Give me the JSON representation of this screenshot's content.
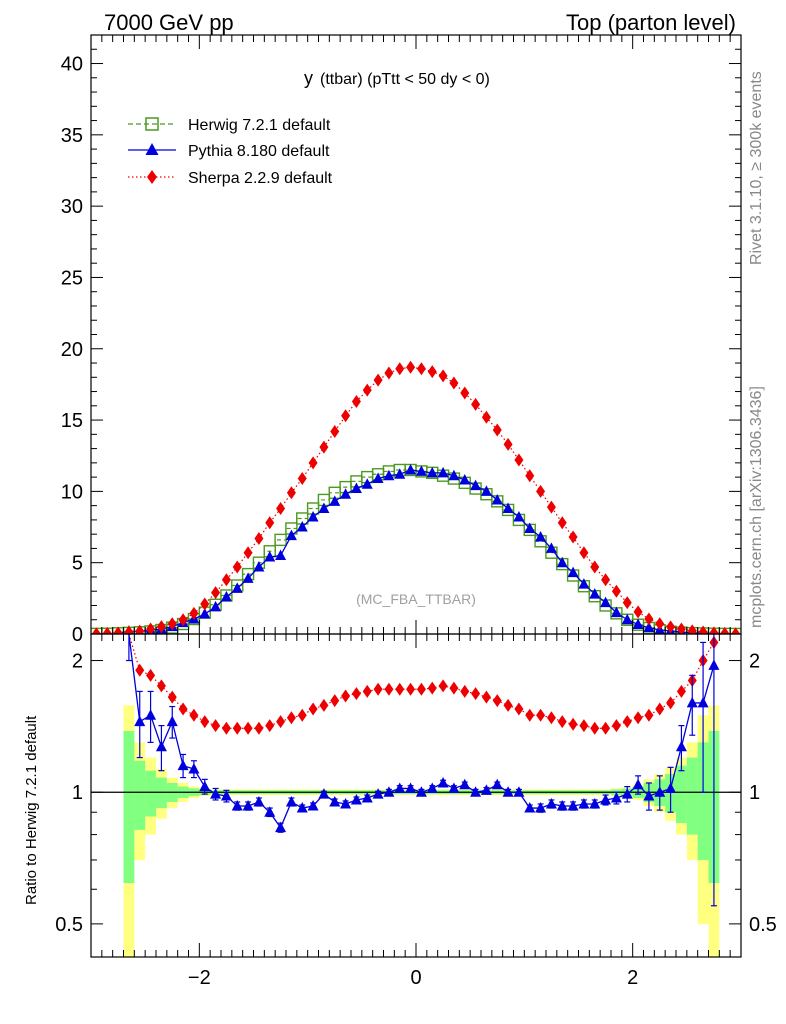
{
  "header": {
    "left": "7000 GeV pp",
    "right": "Top (parton level)"
  },
  "side_labels": {
    "rivet": "Rivet 3.1.10, ≥ 300k events",
    "mcplots": "mcplots.cern.ch [arXiv:1306.3436]"
  },
  "watermark": "(MC_FBA_TTBAR)",
  "colors": {
    "herwig": "#4a9a1e",
    "pythia": "#0000dd",
    "sherpa": "#ee0000",
    "band_inner": "#80ff80",
    "band_outer": "#ffff80"
  },
  "chart_data": [
    {
      "type": "line",
      "title_main": "y",
      "title_rest": "(ttbar) (pTtt < 50 dy < 0)",
      "xlabel": "",
      "ylabel": "",
      "xlim": [
        -3,
        3
      ],
      "ylim": [
        0,
        42
      ],
      "yticks": [
        0,
        5,
        10,
        15,
        20,
        25,
        30,
        35,
        40
      ],
      "xticks": [
        -2,
        0,
        2
      ],
      "legend": [
        {
          "name": "Herwig 7.2.1 default",
          "style": "dashed-open-square"
        },
        {
          "name": "Pythia 8.180 default",
          "style": "solid-triangle"
        },
        {
          "name": "Sherpa 2.2.9 default",
          "style": "dotted-diamond"
        }
      ],
      "legend_position": "top-left",
      "bin_width": 0.1,
      "x": [
        -2.95,
        -2.85,
        -2.75,
        -2.65,
        -2.55,
        -2.45,
        -2.35,
        -2.25,
        -2.15,
        -2.05,
        -1.95,
        -1.85,
        -1.75,
        -1.65,
        -1.55,
        -1.45,
        -1.35,
        -1.25,
        -1.15,
        -1.05,
        -0.95,
        -0.85,
        -0.75,
        -0.65,
        -0.55,
        -0.45,
        -0.35,
        -0.25,
        -0.15,
        -0.05,
        0.05,
        0.15,
        0.25,
        0.35,
        0.45,
        0.55,
        0.65,
        0.75,
        0.85,
        0.95,
        1.05,
        1.15,
        1.25,
        1.35,
        1.45,
        1.55,
        1.65,
        1.75,
        1.85,
        1.95,
        2.05,
        2.15,
        2.25,
        2.35,
        2.45,
        2.55,
        2.65,
        2.75,
        2.85,
        2.95
      ],
      "series": [
        {
          "name": "Herwig 7.2.1 default",
          "values": [
            0.01,
            0.02,
            0.05,
            0.08,
            0.12,
            0.18,
            0.28,
            0.45,
            0.7,
            1.05,
            1.5,
            2.05,
            2.7,
            3.4,
            4.2,
            5.0,
            5.8,
            6.6,
            7.4,
            8.1,
            8.8,
            9.4,
            9.9,
            10.3,
            10.7,
            11.0,
            11.2,
            11.4,
            11.5,
            11.5,
            11.4,
            11.3,
            11.1,
            10.9,
            10.6,
            10.2,
            9.8,
            9.3,
            8.7,
            8.0,
            7.3,
            6.5,
            5.7,
            4.9,
            4.1,
            3.35,
            2.65,
            2.0,
            1.45,
            1.0,
            0.65,
            0.42,
            0.26,
            0.16,
            0.1,
            0.06,
            0.04,
            0.02,
            0.01,
            0.005
          ]
        },
        {
          "name": "Pythia 8.180 default",
          "values": [
            0.0,
            0.01,
            0.06,
            0.2,
            0.17,
            0.26,
            0.35,
            0.52,
            0.8,
            1.05,
            1.4,
            1.9,
            2.6,
            3.2,
            3.9,
            4.7,
            5.4,
            5.5,
            6.9,
            7.5,
            8.2,
            8.8,
            9.3,
            9.8,
            10.2,
            10.5,
            10.9,
            11.1,
            11.2,
            11.5,
            11.4,
            11.3,
            11.3,
            11.1,
            10.8,
            10.4,
            10.0,
            9.4,
            8.8,
            8.2,
            7.4,
            6.8,
            6.0,
            5.0,
            4.3,
            3.5,
            2.8,
            2.2,
            1.5,
            1.0,
            0.67,
            0.44,
            0.28,
            0.23,
            0.14,
            0.09,
            0.05,
            0.04,
            0.01,
            0.0
          ]
        },
        {
          "name": "Sherpa 2.2.9 default",
          "values": [
            0.02,
            0.04,
            0.08,
            0.14,
            0.2,
            0.35,
            0.52,
            0.72,
            1.0,
            1.45,
            2.1,
            2.9,
            3.8,
            4.7,
            5.7,
            6.7,
            7.8,
            8.8,
            9.9,
            10.9,
            12.0,
            13.1,
            14.2,
            15.3,
            16.3,
            17.1,
            17.8,
            18.3,
            18.6,
            18.7,
            18.6,
            18.4,
            18.1,
            17.6,
            16.9,
            16.1,
            15.2,
            14.3,
            13.3,
            12.2,
            11.1,
            10.0,
            8.9,
            7.8,
            6.8,
            5.7,
            4.7,
            3.8,
            3.0,
            2.2,
            1.55,
            1.05,
            0.72,
            0.5,
            0.35,
            0.22,
            0.14,
            0.08,
            0.04,
            0.02
          ]
        }
      ]
    },
    {
      "type": "line",
      "title": "",
      "xlabel": "",
      "ylabel": "Ratio to Herwig 7.2.1 default",
      "xlim": [
        -3,
        3
      ],
      "ylim": [
        0.42,
        2.3
      ],
      "yscale": "log",
      "yticks": [
        0.5,
        1,
        2
      ],
      "ytick_labels": [
        "0.5",
        "1",
        "2"
      ],
      "xticks": [
        -2,
        0,
        2
      ],
      "xtick_labels": [
        "−2",
        "0",
        "2"
      ],
      "x": [
        -2.65,
        -2.55,
        -2.45,
        -2.35,
        -2.25,
        -2.15,
        -2.05,
        -1.95,
        -1.85,
        -1.75,
        -1.65,
        -1.55,
        -1.45,
        -1.35,
        -1.25,
        -1.15,
        -1.05,
        -0.95,
        -0.85,
        -0.75,
        -0.65,
        -0.55,
        -0.45,
        -0.35,
        -0.25,
        -0.15,
        -0.05,
        0.05,
        0.15,
        0.25,
        0.35,
        0.45,
        0.55,
        0.65,
        0.75,
        0.85,
        0.95,
        1.05,
        1.15,
        1.25,
        1.35,
        1.45,
        1.55,
        1.65,
        1.75,
        1.85,
        1.95,
        2.05,
        2.15,
        2.25,
        2.35,
        2.45,
        2.55,
        2.65,
        2.75
      ],
      "series": [
        {
          "name": "Pythia 8.180 default",
          "values": [
            2.4,
            1.45,
            1.5,
            1.27,
            1.45,
            1.15,
            1.13,
            1.03,
            0.99,
            0.98,
            0.93,
            0.93,
            0.95,
            0.9,
            0.83,
            0.95,
            0.92,
            0.93,
            0.99,
            0.95,
            0.94,
            0.96,
            0.97,
            0.99,
            1.0,
            1.02,
            1.02,
            1.0,
            1.02,
            1.05,
            1.02,
            1.04,
            1.0,
            1.01,
            1.04,
            1.0,
            1.0,
            0.92,
            0.92,
            0.94,
            0.93,
            0.93,
            0.94,
            0.94,
            0.96,
            0.97,
            0.99,
            1.04,
            0.98,
            1.0,
            1.02,
            1.27,
            1.6,
            1.6,
            1.95
          ],
          "errors": [
            0.4,
            0.25,
            0.2,
            0.15,
            0.12,
            0.07,
            0.05,
            0.04,
            0.03,
            0.03,
            0.02,
            0.02,
            0.02,
            0.02,
            0.02,
            0.02,
            0.015,
            0.015,
            0.015,
            0.015,
            0.015,
            0.015,
            0.015,
            0.015,
            0.015,
            0.015,
            0.015,
            0.015,
            0.015,
            0.015,
            0.015,
            0.015,
            0.015,
            0.015,
            0.015,
            0.015,
            0.015,
            0.015,
            0.02,
            0.02,
            0.02,
            0.02,
            0.02,
            0.02,
            0.025,
            0.03,
            0.04,
            0.05,
            0.07,
            0.09,
            0.12,
            0.15,
            0.25,
            0.6,
            1.4
          ]
        },
        {
          "name": "Sherpa 2.2.9 default",
          "values": [
            2.5,
            1.9,
            1.85,
            1.75,
            1.65,
            1.55,
            1.5,
            1.45,
            1.42,
            1.4,
            1.4,
            1.4,
            1.4,
            1.42,
            1.45,
            1.48,
            1.5,
            1.55,
            1.58,
            1.62,
            1.66,
            1.68,
            1.7,
            1.72,
            1.72,
            1.72,
            1.72,
            1.72,
            1.73,
            1.75,
            1.73,
            1.7,
            1.68,
            1.65,
            1.62,
            1.58,
            1.55,
            1.5,
            1.5,
            1.48,
            1.45,
            1.43,
            1.42,
            1.4,
            1.4,
            1.42,
            1.45,
            1.48,
            1.5,
            1.55,
            1.6,
            1.7,
            1.8,
            2.0,
            2.2
          ]
        }
      ],
      "band_inner": [
        0.62,
        0.82,
        0.88,
        0.92,
        0.95,
        0.97,
        0.98,
        0.985,
        0.99,
        0.99,
        0.99,
        0.99,
        0.99,
        0.99,
        0.99,
        0.99,
        0.99,
        0.99,
        0.99,
        0.99,
        0.99,
        0.99,
        0.99,
        0.99,
        0.99,
        0.99,
        0.99,
        0.99,
        0.99,
        0.99,
        0.99,
        0.99,
        0.99,
        0.99,
        0.99,
        0.99,
        0.99,
        0.99,
        0.99,
        0.99,
        0.99,
        0.99,
        0.99,
        0.99,
        0.99,
        0.985,
        0.98,
        0.97,
        0.95,
        0.93,
        0.9,
        0.85,
        0.8,
        0.7,
        0.62
      ],
      "band_outer": [
        0.42,
        0.7,
        0.8,
        0.87,
        0.92,
        0.95,
        0.97,
        0.98,
        0.985,
        0.985,
        0.985,
        0.985,
        0.985,
        0.985,
        0.985,
        0.985,
        0.985,
        0.985,
        0.985,
        0.985,
        0.985,
        0.985,
        0.985,
        0.985,
        0.985,
        0.985,
        0.985,
        0.985,
        0.985,
        0.985,
        0.985,
        0.985,
        0.985,
        0.985,
        0.985,
        0.985,
        0.985,
        0.985,
        0.985,
        0.985,
        0.985,
        0.985,
        0.985,
        0.985,
        0.985,
        0.98,
        0.975,
        0.96,
        0.93,
        0.9,
        0.86,
        0.8,
        0.7,
        0.5,
        0.42
      ]
    }
  ]
}
